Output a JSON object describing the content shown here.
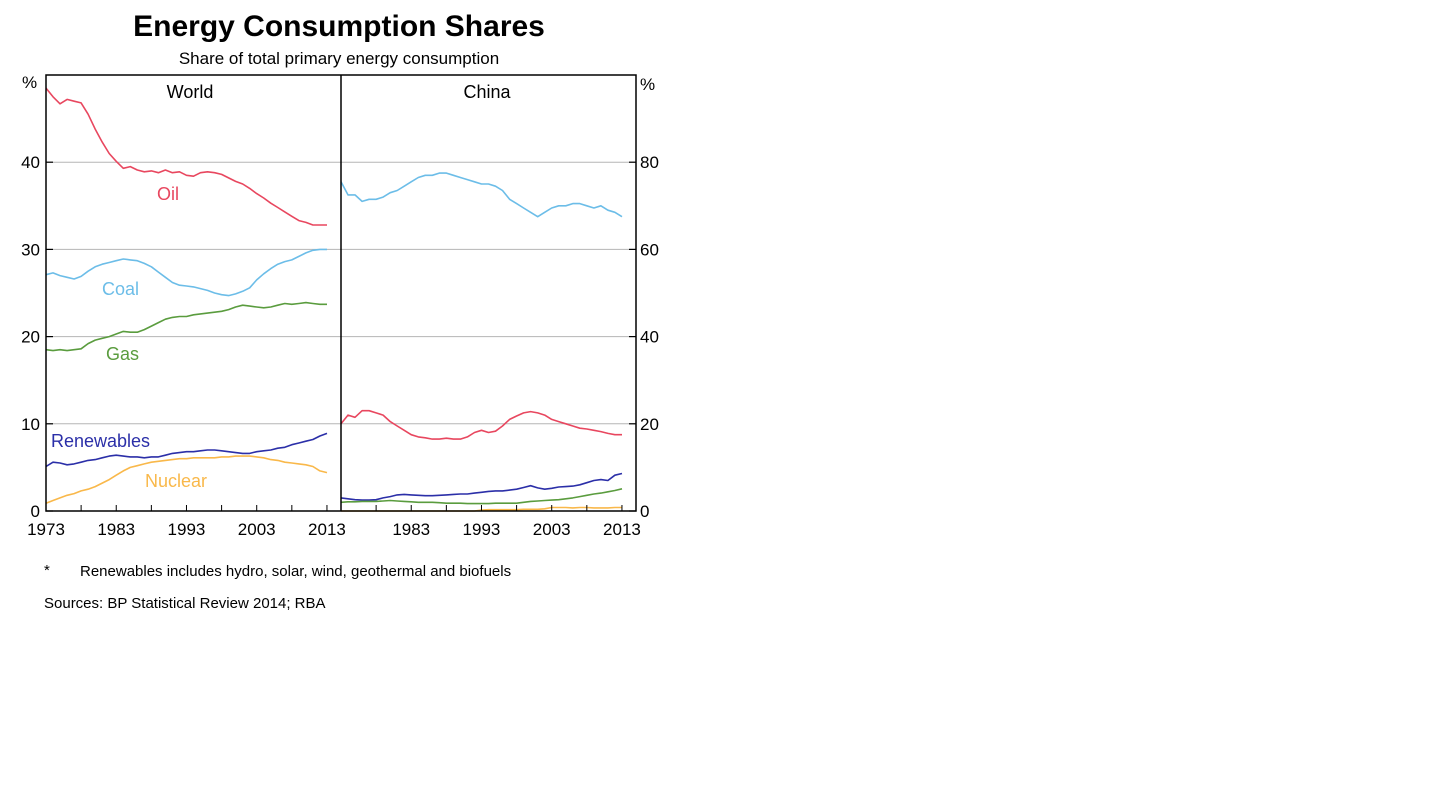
{
  "chart_data": {
    "type": "line",
    "title": "Energy Consumption Shares",
    "subtitle": "Share of total primary energy consumption",
    "left_axis": {
      "unit": "%",
      "ticks": [
        "0",
        "10",
        "20",
        "30",
        "40"
      ],
      "range": [
        0,
        50
      ]
    },
    "right_axis": {
      "unit": "%",
      "ticks": [
        "0",
        "20",
        "40",
        "60",
        "80"
      ],
      "range": [
        0,
        100
      ]
    },
    "grid": true,
    "panels": [
      {
        "name": "World",
        "x_ticks": [
          "1973",
          "1983",
          "1993",
          "2003",
          "2013"
        ],
        "x_range": [
          1973,
          2015
        ],
        "series": [
          {
            "name": "Oil",
            "color": "#e8475f",
            "x": [
              1973,
              1974,
              1975,
              1976,
              1977,
              1978,
              1979,
              1980,
              1981,
              1982,
              1983,
              1984,
              1985,
              1986,
              1987,
              1988,
              1989,
              1990,
              1991,
              1992,
              1993,
              1994,
              1995,
              1996,
              1997,
              1998,
              1999,
              2000,
              2001,
              2002,
              2003,
              2004,
              2005,
              2006,
              2007,
              2008,
              2009,
              2010,
              2011,
              2012,
              2013
            ],
            "y": [
              48.5,
              47.5,
              46.7,
              47.2,
              47.0,
              46.8,
              45.5,
              43.8,
              42.3,
              41.0,
              40.1,
              39.3,
              39.5,
              39.1,
              38.9,
              39.0,
              38.8,
              39.1,
              38.8,
              38.9,
              38.5,
              38.4,
              38.8,
              38.9,
              38.8,
              38.6,
              38.2,
              37.8,
              37.5,
              37.0,
              36.4,
              35.9,
              35.3,
              34.8,
              34.3,
              33.8,
              33.3,
              33.1,
              32.8,
              32.8,
              32.8
            ]
          },
          {
            "name": "Coal",
            "color": "#6cbde8",
            "x": [
              1973,
              1974,
              1975,
              1976,
              1977,
              1978,
              1979,
              1980,
              1981,
              1982,
              1983,
              1984,
              1985,
              1986,
              1987,
              1988,
              1989,
              1990,
              1991,
              1992,
              1993,
              1994,
              1995,
              1996,
              1997,
              1998,
              1999,
              2000,
              2001,
              2002,
              2003,
              2004,
              2005,
              2006,
              2007,
              2008,
              2009,
              2010,
              2011,
              2012,
              2013
            ],
            "y": [
              27.1,
              27.3,
              27.0,
              26.8,
              26.6,
              26.9,
              27.5,
              28.0,
              28.3,
              28.5,
              28.7,
              28.9,
              28.8,
              28.7,
              28.4,
              28.0,
              27.4,
              26.8,
              26.2,
              25.9,
              25.8,
              25.7,
              25.5,
              25.3,
              25.0,
              24.8,
              24.7,
              24.9,
              25.2,
              25.6,
              26.5,
              27.2,
              27.8,
              28.3,
              28.6,
              28.8,
              29.2,
              29.6,
              29.9,
              30.0,
              30.0
            ]
          },
          {
            "name": "Gas",
            "color": "#5a9c3e",
            "x": [
              1973,
              1974,
              1975,
              1976,
              1977,
              1978,
              1979,
              1980,
              1981,
              1982,
              1983,
              1984,
              1985,
              1986,
              1987,
              1988,
              1989,
              1990,
              1991,
              1992,
              1993,
              1994,
              1995,
              1996,
              1997,
              1998,
              1999,
              2000,
              2001,
              2002,
              2003,
              2004,
              2005,
              2006,
              2007,
              2008,
              2009,
              2010,
              2011,
              2012,
              2013
            ],
            "y": [
              18.5,
              18.4,
              18.5,
              18.4,
              18.5,
              18.6,
              19.2,
              19.6,
              19.8,
              20.0,
              20.3,
              20.6,
              20.5,
              20.5,
              20.8,
              21.2,
              21.6,
              22.0,
              22.2,
              22.3,
              22.3,
              22.5,
              22.6,
              22.7,
              22.8,
              22.9,
              23.1,
              23.4,
              23.6,
              23.5,
              23.4,
              23.3,
              23.4,
              23.6,
              23.8,
              23.7,
              23.8,
              23.9,
              23.8,
              23.7,
              23.7
            ]
          },
          {
            "name": "Renewables",
            "color": "#2b2fa8",
            "x": [
              1973,
              1974,
              1975,
              1976,
              1977,
              1978,
              1979,
              1980,
              1981,
              1982,
              1983,
              1984,
              1985,
              1986,
              1987,
              1988,
              1989,
              1990,
              1991,
              1992,
              1993,
              1994,
              1995,
              1996,
              1997,
              1998,
              1999,
              2000,
              2001,
              2002,
              2003,
              2004,
              2005,
              2006,
              2007,
              2008,
              2009,
              2010,
              2011,
              2012,
              2013
            ],
            "y": [
              5.1,
              5.6,
              5.5,
              5.3,
              5.4,
              5.6,
              5.8,
              5.9,
              6.1,
              6.3,
              6.4,
              6.3,
              6.2,
              6.2,
              6.1,
              6.2,
              6.2,
              6.4,
              6.6,
              6.7,
              6.8,
              6.8,
              6.9,
              7.0,
              7.0,
              6.9,
              6.8,
              6.7,
              6.6,
              6.6,
              6.8,
              6.9,
              7.0,
              7.2,
              7.3,
              7.6,
              7.8,
              8.0,
              8.2,
              8.6,
              8.9
            ]
          },
          {
            "name": "Nuclear",
            "color": "#f9b84a",
            "x": [
              1973,
              1974,
              1975,
              1976,
              1977,
              1978,
              1979,
              1980,
              1981,
              1982,
              1983,
              1984,
              1985,
              1986,
              1987,
              1988,
              1989,
              1990,
              1991,
              1992,
              1993,
              1994,
              1995,
              1996,
              1997,
              1998,
              1999,
              2000,
              2001,
              2002,
              2003,
              2004,
              2005,
              2006,
              2007,
              2008,
              2009,
              2010,
              2011,
              2012,
              2013
            ],
            "y": [
              0.9,
              1.2,
              1.5,
              1.8,
              2.0,
              2.3,
              2.5,
              2.8,
              3.2,
              3.6,
              4.1,
              4.6,
              5.0,
              5.2,
              5.4,
              5.6,
              5.7,
              5.8,
              5.9,
              6.0,
              6.0,
              6.1,
              6.1,
              6.1,
              6.1,
              6.2,
              6.2,
              6.3,
              6.3,
              6.3,
              6.2,
              6.1,
              5.9,
              5.8,
              5.6,
              5.5,
              5.4,
              5.3,
              5.1,
              4.6,
              4.4
            ]
          }
        ]
      },
      {
        "name": "China",
        "x_ticks": [
          "1983",
          "1993",
          "2003",
          "2013"
        ],
        "x_range": [
          1973,
          2015
        ],
        "series": [
          {
            "name": "Coal",
            "color": "#6cbde8",
            "x": [
              1973,
              1974,
              1975,
              1976,
              1977,
              1978,
              1979,
              1980,
              1981,
              1982,
              1983,
              1984,
              1985,
              1986,
              1987,
              1988,
              1989,
              1990,
              1991,
              1992,
              1993,
              1994,
              1995,
              1996,
              1997,
              1998,
              1999,
              2000,
              2001,
              2002,
              2003,
              2004,
              2005,
              2006,
              2007,
              2008,
              2009,
              2010,
              2011,
              2012,
              2013
            ],
            "y": [
              75.5,
              72.5,
              72.5,
              71.0,
              71.5,
              71.5,
              72.0,
              73.0,
              73.5,
              74.5,
              75.5,
              76.5,
              77.0,
              77.0,
              77.5,
              77.5,
              77.0,
              76.5,
              76.0,
              75.5,
              75.0,
              75.0,
              74.5,
              73.5,
              71.5,
              70.5,
              69.5,
              68.5,
              67.5,
              68.5,
              69.5,
              70.0,
              70.0,
              70.5,
              70.5,
              70.0,
              69.5,
              70.0,
              69.0,
              68.5,
              67.5
            ]
          },
          {
            "name": "Oil",
            "color": "#e8475f",
            "x": [
              1973,
              1974,
              1975,
              1976,
              1977,
              1978,
              1979,
              1980,
              1981,
              1982,
              1983,
              1984,
              1985,
              1986,
              1987,
              1988,
              1989,
              1990,
              1991,
              1992,
              1993,
              1994,
              1995,
              1996,
              1997,
              1998,
              1999,
              2000,
              2001,
              2002,
              2003,
              2004,
              2005,
              2006,
              2007,
              2008,
              2009,
              2010,
              2011,
              2012,
              2013
            ],
            "y": [
              20.0,
              22.0,
              21.5,
              23.0,
              23.0,
              22.5,
              22.0,
              20.5,
              19.5,
              18.5,
              17.5,
              17.0,
              16.8,
              16.5,
              16.5,
              16.7,
              16.5,
              16.5,
              17.0,
              18.0,
              18.5,
              18.0,
              18.3,
              19.5,
              21.0,
              21.8,
              22.5,
              22.8,
              22.5,
              22.0,
              21.0,
              20.5,
              20.0,
              19.5,
              19.0,
              18.8,
              18.5,
              18.2,
              17.8,
              17.5,
              17.5
            ]
          },
          {
            "name": "Renewables",
            "color": "#2b2fa8",
            "x": [
              1973,
              1974,
              1975,
              1976,
              1977,
              1978,
              1979,
              1980,
              1981,
              1982,
              1983,
              1984,
              1985,
              1986,
              1987,
              1988,
              1989,
              1990,
              1991,
              1992,
              1993,
              1994,
              1995,
              1996,
              1997,
              1998,
              1999,
              2000,
              2001,
              2002,
              2003,
              2004,
              2005,
              2006,
              2007,
              2008,
              2009,
              2010,
              2011,
              2012,
              2013
            ],
            "y": [
              3.0,
              2.8,
              2.6,
              2.5,
              2.5,
              2.6,
              3.0,
              3.3,
              3.7,
              3.8,
              3.7,
              3.6,
              3.5,
              3.5,
              3.6,
              3.7,
              3.8,
              3.9,
              3.9,
              4.1,
              4.3,
              4.5,
              4.6,
              4.6,
              4.8,
              5.0,
              5.4,
              5.8,
              5.3,
              5.0,
              5.2,
              5.5,
              5.6,
              5.7,
              6.0,
              6.5,
              7.0,
              7.2,
              7.0,
              8.2,
              8.6
            ]
          },
          {
            "name": "Gas",
            "color": "#5a9c3e",
            "x": [
              1973,
              1974,
              1975,
              1976,
              1977,
              1978,
              1979,
              1980,
              1981,
              1982,
              1983,
              1984,
              1985,
              1986,
              1987,
              1988,
              1989,
              1990,
              1991,
              1992,
              1993,
              1994,
              1995,
              1996,
              1997,
              1998,
              1999,
              2000,
              2001,
              2002,
              2003,
              2004,
              2005,
              2006,
              2007,
              2008,
              2009,
              2010,
              2011,
              2012,
              2013
            ],
            "y": [
              2.0,
              2.1,
              2.1,
              2.2,
              2.2,
              2.2,
              2.3,
              2.4,
              2.3,
              2.2,
              2.1,
              2.0,
              2.0,
              2.0,
              1.9,
              1.8,
              1.8,
              1.8,
              1.7,
              1.7,
              1.7,
              1.7,
              1.8,
              1.8,
              1.8,
              1.8,
              2.0,
              2.2,
              2.3,
              2.4,
              2.5,
              2.6,
              2.8,
              3.0,
              3.3,
              3.6,
              3.9,
              4.1,
              4.4,
              4.7,
              5.1
            ]
          },
          {
            "name": "Nuclear",
            "color": "#f9b84a",
            "x": [
              1973,
              1974,
              1975,
              1976,
              1977,
              1978,
              1979,
              1980,
              1981,
              1982,
              1983,
              1984,
              1985,
              1986,
              1987,
              1988,
              1989,
              1990,
              1991,
              1992,
              1993,
              1994,
              1995,
              1996,
              1997,
              1998,
              1999,
              2000,
              2001,
              2002,
              2003,
              2004,
              2005,
              2006,
              2007,
              2008,
              2009,
              2010,
              2011,
              2012,
              2013
            ],
            "y": [
              0,
              0,
              0,
              0,
              0,
              0,
              0,
              0,
              0,
              0,
              0,
              0,
              0,
              0,
              0,
              0,
              0,
              0,
              0,
              0,
              0.2,
              0.3,
              0.3,
              0.3,
              0.3,
              0.3,
              0.4,
              0.4,
              0.4,
              0.5,
              0.8,
              0.8,
              0.8,
              0.7,
              0.8,
              0.8,
              0.7,
              0.7,
              0.7,
              0.8,
              0.8
            ]
          }
        ]
      }
    ],
    "series_labels": [
      "Oil",
      "Coal",
      "Gas",
      "Renewables",
      "Nuclear"
    ]
  },
  "footnote_marker": "*",
  "footnote_text": "Renewables includes hydro, solar, wind, geothermal and biofuels",
  "sources": "Sources: BP Statistical Review 2014; RBA"
}
